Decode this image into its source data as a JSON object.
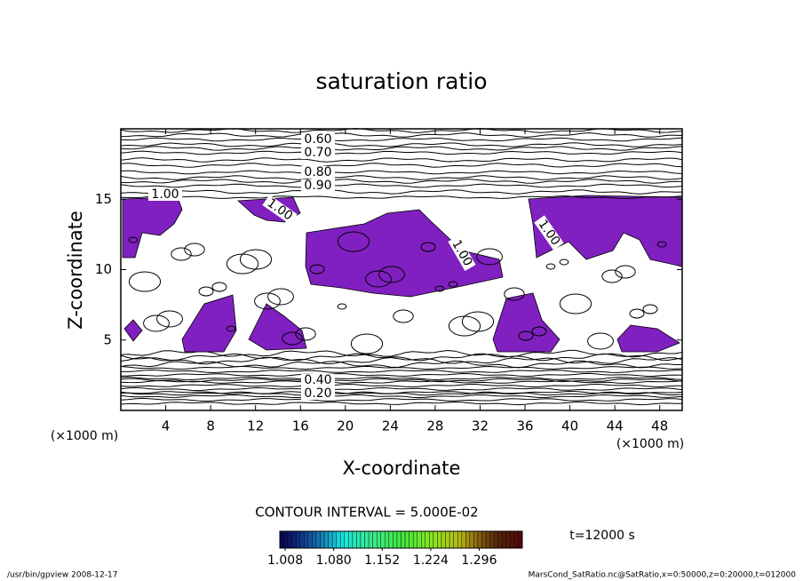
{
  "chart_data": {
    "type": "contour",
    "title": "saturation ratio",
    "x_label": "X-coordinate",
    "y_label": "Z-coordinate",
    "x_unit_label": "(×1000 m)",
    "y_unit_label": "(×1000 m)",
    "xlim": [
      0,
      50
    ],
    "xticks": [
      4,
      8,
      12,
      16,
      20,
      24,
      28,
      32,
      36,
      40,
      44,
      48
    ],
    "ylim": [
      0,
      20
    ],
    "yticks": [
      5,
      10,
      15
    ],
    "fill_color": "#8020c0",
    "contour_labels": [
      {
        "value": 0.6,
        "label": "0.60"
      },
      {
        "value": 0.7,
        "label": "0.70"
      },
      {
        "value": 0.8,
        "label": "0.80"
      },
      {
        "value": 0.9,
        "label": "0.90"
      },
      {
        "value": 1,
        "label": "1.00"
      },
      {
        "value": 1,
        "label": "1.00"
      },
      {
        "value": 1,
        "label": "1.00"
      },
      {
        "value": 1,
        "label": "1.00"
      },
      {
        "value": 0.4,
        "label": "0.40"
      },
      {
        "value": 0.2,
        "label": "0.20"
      }
    ],
    "contour_interval_text": "CONTOUR INTERVAL = 5.000E-02",
    "time_text": "t=12000 s",
    "colorbar_lim": [
      1.0,
      1.36
    ],
    "colorbar_ticks": [
      {
        "value": 1.008,
        "label": "1.008"
      },
      {
        "value": 1.08,
        "label": "1.080"
      },
      {
        "value": 1.152,
        "label": "1.152"
      },
      {
        "value": 1.224,
        "label": "1.224"
      },
      {
        "value": 1.296,
        "label": "1.296"
      }
    ],
    "footer_left": "/usr/bin/gpview  2008-12-17",
    "footer_right": "MarsCond_SatRatio.nc@SatRatio,x=0:50000,z=0:20000,t=012000"
  }
}
